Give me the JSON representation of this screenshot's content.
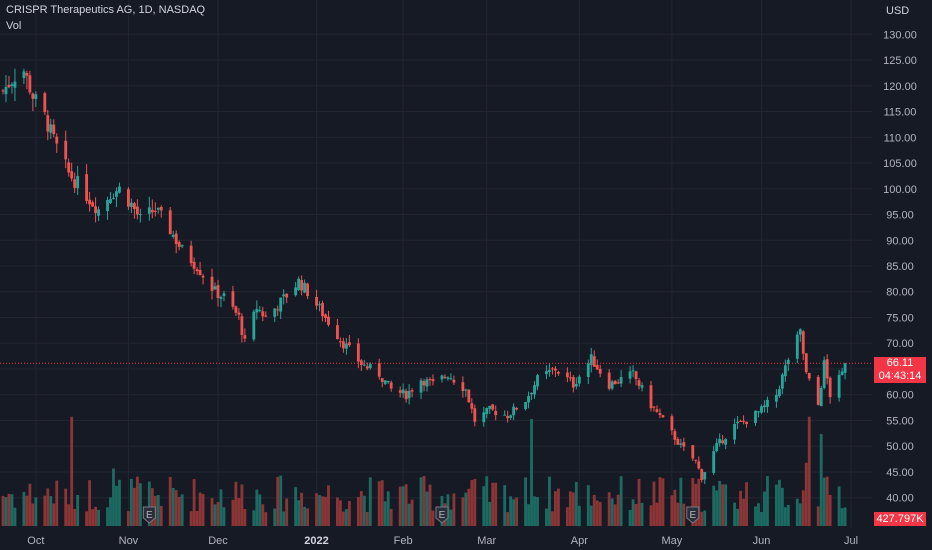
{
  "header": {
    "symbol_title": "CRISPR Therapeutics AG, 1D, NASDAQ",
    "volume_label": "Vol"
  },
  "price_axis": {
    "currency": "USD",
    "ticks": [
      "130.00",
      "125.00",
      "120.00",
      "115.00",
      "110.00",
      "105.00",
      "100.00",
      "95.00",
      "90.00",
      "85.00",
      "80.00",
      "75.00",
      "70.00",
      "65.00",
      "60.00",
      "55.00",
      "50.00",
      "45.00",
      "40.00"
    ],
    "tick_values": [
      130,
      125,
      120,
      115,
      110,
      105,
      100,
      95,
      90,
      85,
      80,
      75,
      70,
      65,
      60,
      55,
      50,
      45,
      40
    ]
  },
  "last_price": {
    "price": "66.11",
    "countdown": "04:43:14",
    "value": 66.11
  },
  "last_volume": {
    "label": "427.797K"
  },
  "time_axis": {
    "labels": [
      "Oct",
      "Nov",
      "Dec",
      "2022",
      "Feb",
      "Mar",
      "Apr",
      "May",
      "Jun",
      "Jul"
    ],
    "label_dates": [
      "2021-10-01",
      "2021-11-01",
      "2021-12-01",
      "2022-01-03",
      "2022-02-01",
      "2022-03-01",
      "2022-04-01",
      "2022-05-02",
      "2022-06-01",
      "2022-07-01"
    ],
    "bold_label": "2022"
  },
  "earnings_marker": {
    "letter": "E",
    "dates": [
      "2021-11-08",
      "2022-02-14",
      "2022-05-09"
    ]
  },
  "colors": {
    "background": "#161a25",
    "up": "#26a69a",
    "down": "#ef5350",
    "up_volume": "#1c6b63",
    "down_volume": "#8c3536",
    "grid": "#232632",
    "axis_text": "#b2b5be",
    "price_line": "#f23645"
  },
  "chart_data": {
    "type": "candlestick",
    "title": "CRISPR Therapeutics AG, 1D, NASDAQ",
    "ylim": [
      38,
      132
    ],
    "xlim": [
      "2021-09-20",
      "2022-07-05"
    ],
    "y_unit": "USD",
    "grid": true,
    "close_anchors": [
      [
        "2021-09-20",
        119.0
      ],
      [
        "2021-09-24",
        122.0
      ],
      [
        "2021-09-27",
        123.0
      ],
      [
        "2021-09-30",
        118.0
      ],
      [
        "2021-10-04",
        114.0
      ],
      [
        "2021-10-08",
        108.0
      ],
      [
        "2021-10-12",
        103.0
      ],
      [
        "2021-10-15",
        101.0
      ],
      [
        "2021-10-19",
        98.0
      ],
      [
        "2021-10-22",
        96.0
      ],
      [
        "2021-10-26",
        99.0
      ],
      [
        "2021-10-29",
        100.0
      ],
      [
        "2021-11-02",
        97.0
      ],
      [
        "2021-11-05",
        94.0
      ],
      [
        "2021-11-10",
        96.0
      ],
      [
        "2021-11-15",
        92.0
      ],
      [
        "2021-11-19",
        88.0
      ],
      [
        "2021-11-24",
        85.0
      ],
      [
        "2021-11-30",
        80.0
      ],
      [
        "2021-12-03",
        79.0
      ],
      [
        "2021-12-08",
        75.0
      ],
      [
        "2021-12-10",
        70.0
      ],
      [
        "2021-12-14",
        77.0
      ],
      [
        "2021-12-17",
        75.0
      ],
      [
        "2021-12-22",
        78.0
      ],
      [
        "2021-12-28",
        82.0
      ],
      [
        "2021-12-31",
        80.0
      ],
      [
        "2022-01-06",
        75.0
      ],
      [
        "2022-01-12",
        70.0
      ],
      [
        "2022-01-18",
        66.0
      ],
      [
        "2022-01-24",
        64.0
      ],
      [
        "2022-01-28",
        61.0
      ],
      [
        "2022-02-02",
        60.0
      ],
      [
        "2022-02-07",
        63.0
      ],
      [
        "2022-02-11",
        62.0
      ],
      [
        "2022-02-16",
        64.0
      ],
      [
        "2022-02-22",
        61.0
      ],
      [
        "2022-02-25",
        55.0
      ],
      [
        "2022-03-02",
        57.0
      ],
      [
        "2022-03-08",
        56.0
      ],
      [
        "2022-03-14",
        59.0
      ],
      [
        "2022-03-18",
        63.0
      ],
      [
        "2022-03-24",
        65.0
      ],
      [
        "2022-03-30",
        62.0
      ],
      [
        "2022-04-05",
        67.0
      ],
      [
        "2022-04-11",
        62.0
      ],
      [
        "2022-04-19",
        64.0
      ],
      [
        "2022-04-25",
        58.0
      ],
      [
        "2022-04-29",
        55.0
      ],
      [
        "2022-05-05",
        50.0
      ],
      [
        "2022-05-10",
        47.0
      ],
      [
        "2022-05-12",
        44.0
      ],
      [
        "2022-05-17",
        50.0
      ],
      [
        "2022-05-23",
        54.0
      ],
      [
        "2022-05-27",
        55.0
      ],
      [
        "2022-06-01",
        57.0
      ],
      [
        "2022-06-06",
        60.0
      ],
      [
        "2022-06-10",
        67.0
      ],
      [
        "2022-06-14",
        72.0
      ],
      [
        "2022-06-16",
        64.0
      ],
      [
        "2022-06-20",
        58.0
      ],
      [
        "2022-06-22",
        66.0
      ],
      [
        "2022-06-24",
        60.0
      ],
      [
        "2022-06-28",
        64.0
      ],
      [
        "2022-06-29",
        66.11
      ]
    ]
  }
}
